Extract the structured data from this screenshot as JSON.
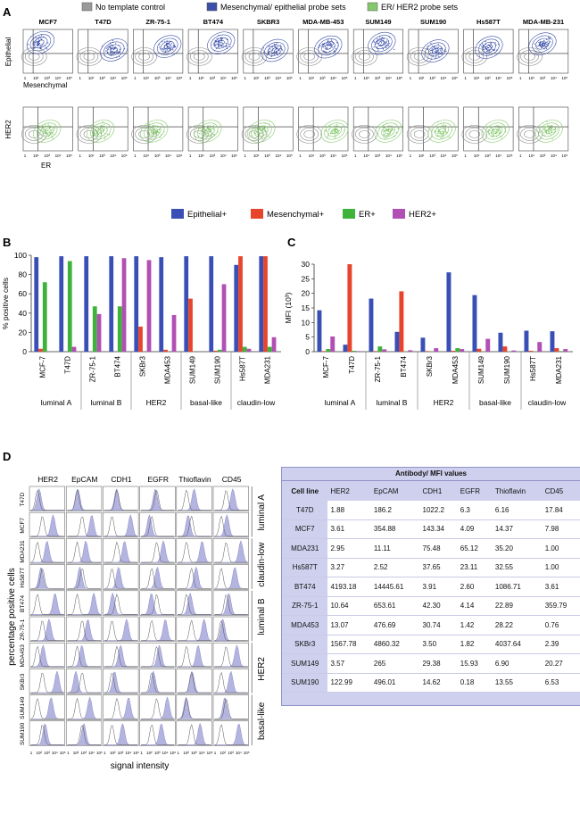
{
  "figure": {
    "panel_labels": {
      "a": "A",
      "b": "B",
      "c": "C",
      "d": "D"
    },
    "legend_top": [
      {
        "label": "No template control",
        "color": "#9a9a9a"
      },
      {
        "label": "Mesenchymal/ epithelial probe sets",
        "color": "#3a4fa8"
      },
      {
        "label": "ER/ HER2 probe sets",
        "color": "#84c86c"
      }
    ],
    "cell_lines_a": [
      "MCF7",
      "T47D",
      "ZR-75-1",
      "BT474",
      "SKBR3",
      "MDA-MB-453",
      "SUM149",
      "SUM190",
      "Hs587T",
      "MDA-MB-231"
    ],
    "row1_ylabel": "Epithelial",
    "row1_xlabel": "Mesenchymal",
    "row2_ylabel": "HER2",
    "row2_xlabel": "ER",
    "flow_axis_ticks": [
      "1",
      "10¹",
      "10³",
      "10⁴",
      "10⁵"
    ],
    "legend_bc": [
      {
        "label": "Epithelial+",
        "color": "#3a4fb5"
      },
      {
        "label": "Mesenchymal+",
        "color": "#e8442c"
      },
      {
        "label": "ER+",
        "color": "#3db33a"
      },
      {
        "label": "HER2+",
        "color": "#b24fb5"
      }
    ],
    "colors": {
      "epithelial": "#3a4fb5",
      "mesenchymal": "#e8442c",
      "er": "#3db33a",
      "her2": "#b24fb5",
      "histogram_fill": "#b4b4e0",
      "table_header": "#cfd0ee"
    }
  },
  "chart_data": [
    {
      "id": "B",
      "type": "bar",
      "ylabel": "% positive cells",
      "ylim": [
        0,
        100
      ],
      "yticks": [
        0,
        20,
        40,
        60,
        80,
        100
      ],
      "categories": [
        "MCF-7",
        "T47D",
        "ZR-75-1",
        "BT474",
        "SKBr3",
        "MDA453",
        "SUM149",
        "SUM190",
        "Hs587T",
        "MDA231"
      ],
      "groups": [
        {
          "label": "luminal A",
          "size": 2
        },
        {
          "label": "luminal B",
          "size": 2
        },
        {
          "label": "HER2",
          "size": 2
        },
        {
          "label": "basal-like",
          "size": 2
        },
        {
          "label": "claudin-low",
          "size": 2
        }
      ],
      "series": [
        {
          "name": "Epithelial+",
          "values": [
            98,
            99,
            99,
            99,
            99,
            98,
            99,
            99,
            90,
            99
          ]
        },
        {
          "name": "Mesenchymal+",
          "values": [
            3,
            0,
            0,
            0,
            26,
            2,
            55,
            1,
            99,
            99
          ]
        },
        {
          "name": "ER+",
          "values": [
            72,
            94,
            47,
            47,
            0,
            0,
            0,
            2,
            5,
            5
          ]
        },
        {
          "name": "HER2+",
          "values": [
            0,
            5,
            39,
            97,
            95,
            38,
            0,
            70,
            3,
            15
          ]
        }
      ]
    },
    {
      "id": "C",
      "type": "bar",
      "ylabel": "MFI (10³)",
      "ylim": [
        0,
        30
      ],
      "yticks": [
        0,
        5,
        10,
        15,
        20,
        25,
        30
      ],
      "categories": [
        "MCF-7",
        "T47D",
        "ZR-75-1",
        "BT474",
        "SKBr3",
        "MDA453",
        "SUM149",
        "SUM190",
        "Hs587T",
        "MDA231"
      ],
      "groups": [
        {
          "label": "luminal A",
          "size": 2
        },
        {
          "label": "luminal B",
          "size": 2
        },
        {
          "label": "HER2",
          "size": 2
        },
        {
          "label": "basal-like",
          "size": 2
        },
        {
          "label": "claudin-low",
          "size": 2
        }
      ],
      "series": [
        {
          "name": "Epithelial+",
          "values": [
            14.2,
            2.4,
            18.2,
            6.8,
            4.8,
            27.2,
            19.4,
            6.5,
            7.2,
            7.0
          ]
        },
        {
          "name": "Mesenchymal+",
          "values": [
            0.2,
            30.0,
            0.2,
            20.7,
            0.2,
            0.3,
            1.0,
            1.8,
            0.3,
            1.2
          ]
        },
        {
          "name": "ER+",
          "values": [
            0.9,
            0.3,
            1.8,
            0.1,
            0.1,
            1.2,
            0.1,
            0.1,
            0.1,
            0.2
          ]
        },
        {
          "name": "HER2+",
          "values": [
            5.2,
            0.2,
            0.8,
            0.5,
            1.2,
            0.9,
            4.4,
            0.4,
            3.3,
            0.9
          ]
        }
      ]
    }
  ],
  "panel_d": {
    "markers": [
      "HER2",
      "EpCAM",
      "CDH1",
      "EGFR",
      "Thioflavin",
      "CD45"
    ],
    "rows": [
      "T47D",
      "MCF7",
      "MDA231",
      "Hs587T",
      "BT474",
      "ZR-75-1",
      "MDA453",
      "SKBr3",
      "SUM149",
      "SUM190"
    ],
    "groups": [
      {
        "label": "luminal A",
        "size": 2
      },
      {
        "label": "claudin-low",
        "size": 2
      },
      {
        "label": "luminal B",
        "size": 2
      },
      {
        "label": "HER2",
        "size": 2
      },
      {
        "label": "basal-like",
        "size": 2
      }
    ],
    "hist_ytick": "100",
    "ylabel": "percentage positive cells",
    "xlabel": "signal intensity",
    "xticks": [
      "1",
      "10²",
      "10³",
      "10⁴",
      "10⁵"
    ]
  },
  "table_d": {
    "caption": "Antibody/ MFI values",
    "headers": [
      "Cell line",
      "HER2",
      "EpCAM",
      "CDH1",
      "EGFR",
      "Thioflavin",
      "CD45"
    ],
    "rows": [
      [
        "T47D",
        "1.88",
        "186.2",
        "1022.2",
        "6.3",
        "6.16",
        "17.84"
      ],
      [
        "MCF7",
        "3.61",
        "354.88",
        "143.34",
        "4.09",
        "14.37",
        "7.98"
      ],
      [
        "MDA231",
        "2.95",
        "11.11",
        "75.48",
        "65.12",
        "35.20",
        "1.00"
      ],
      [
        "Hs587T",
        "3.27",
        "2.52",
        "37.65",
        "23.11",
        "32.55",
        "1.00"
      ],
      [
        "BT474",
        "4193.18",
        "14445.61",
        "3.91",
        "2.60",
        "1086.71",
        "3.61"
      ],
      [
        "ZR-75-1",
        "10.64",
        "653.61",
        "42.30",
        "4.14",
        "22.89",
        "359.79"
      ],
      [
        "MDA453",
        "13.07",
        "476.69",
        "30.74",
        "1.42",
        "28.22",
        "0.76"
      ],
      [
        "SKBr3",
        "1567.78",
        "4860.32",
        "3.50",
        "1.82",
        "4037.64",
        "2.39"
      ],
      [
        "SUM149",
        "3.57",
        "265",
        "29.38",
        "15.93",
        "6.90",
        "20.27"
      ],
      [
        "SUM190",
        "122.99",
        "496.01",
        "14.62",
        "0.18",
        "13.55",
        "6.53"
      ]
    ]
  }
}
